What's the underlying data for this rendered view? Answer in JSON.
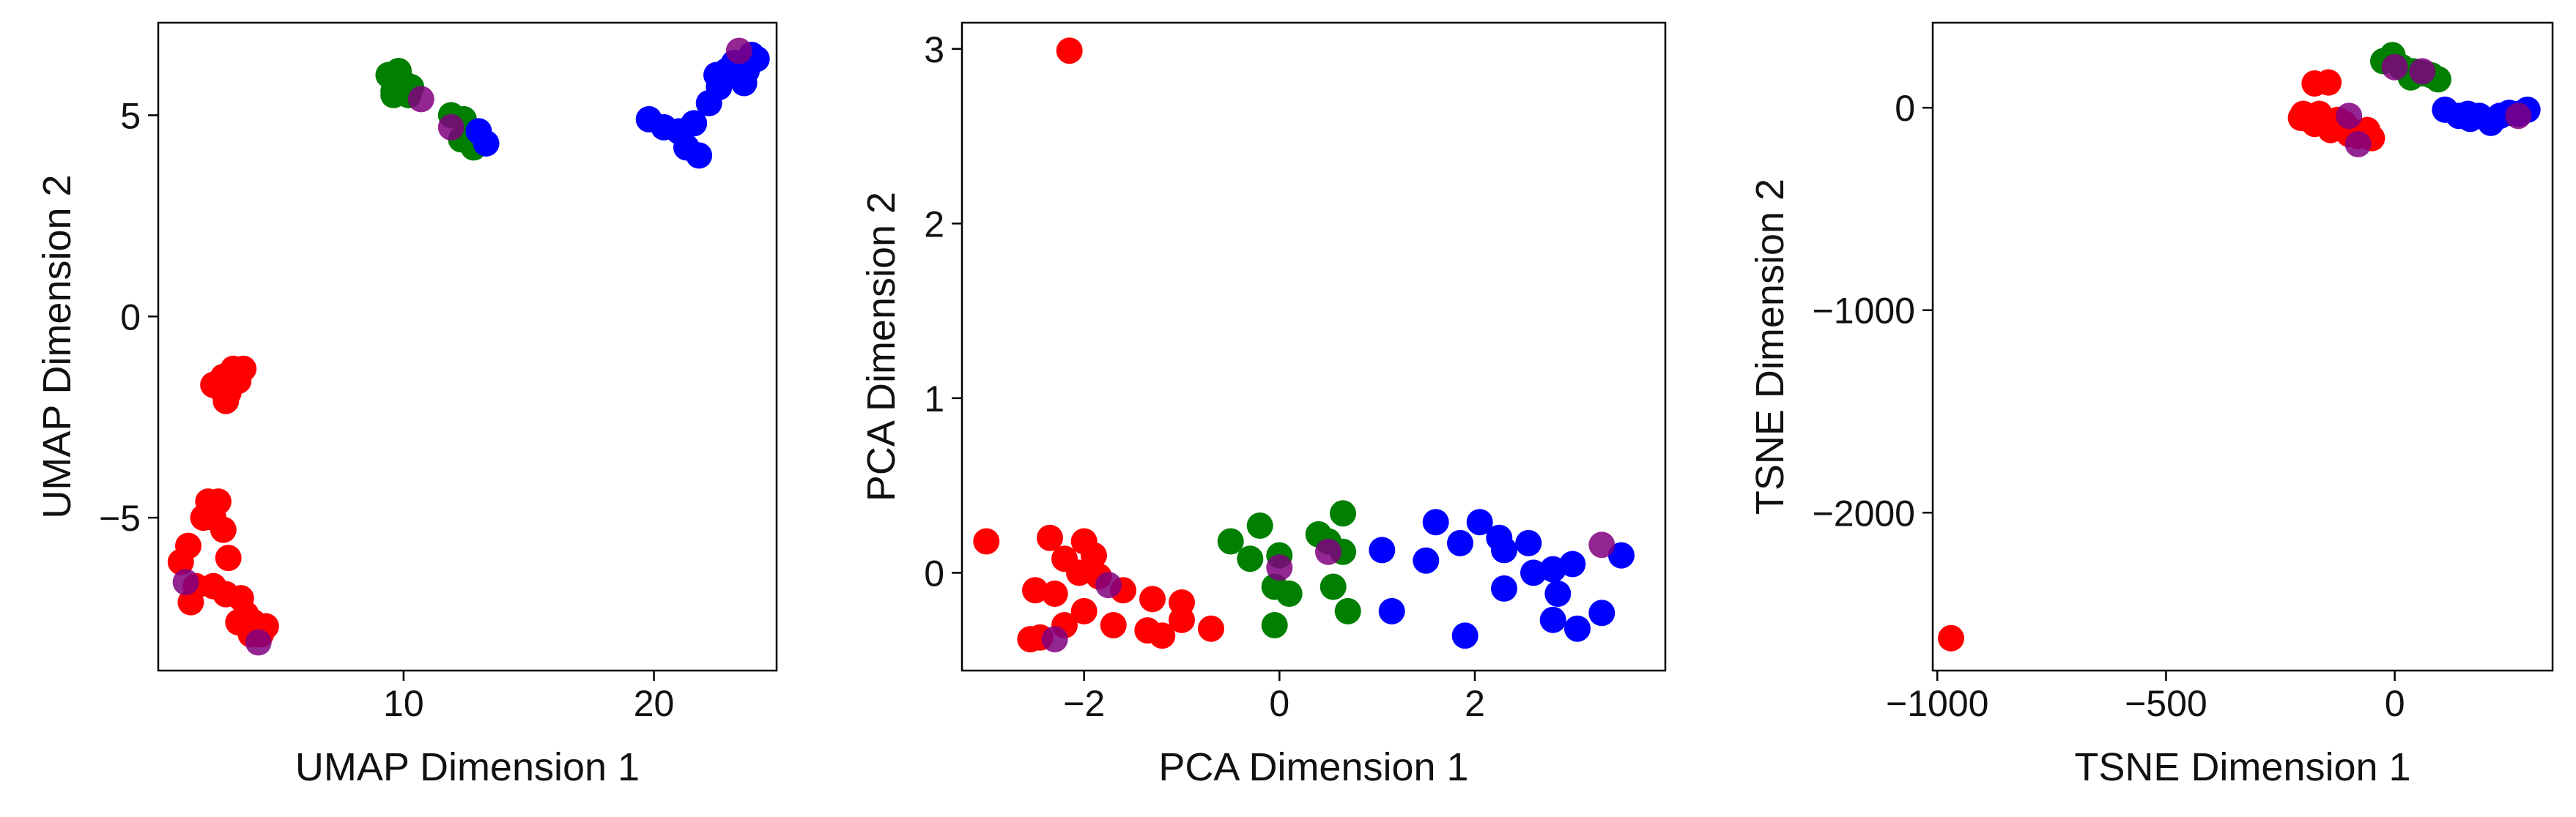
{
  "colors": {
    "red": "#ff0000",
    "green": "#007f00",
    "blue": "#0000ff",
    "purple": "#800080"
  },
  "chart_data": [
    {
      "type": "scatter",
      "title": "",
      "xlabel": "UMAP Dimension 1",
      "ylabel": "UMAP Dimension 2",
      "xlim": [
        0.2,
        24.9
      ],
      "ylim": [
        -8.8,
        7.3
      ],
      "xticks": [
        10,
        20
      ],
      "yticks": [
        -5,
        0,
        5
      ],
      "xtick_labels": [
        "10",
        "20"
      ],
      "ytick_labels": [
        "−5",
        "0",
        "5"
      ],
      "grid": false,
      "legend": null,
      "series": [
        {
          "color": "red",
          "points": [
            [
              2.8,
              -1.5
            ],
            [
              3.2,
              -1.3
            ],
            [
              2.4,
              -1.7
            ],
            [
              3.0,
              -1.9
            ],
            [
              3.4,
              -1.6
            ],
            [
              2.7,
              -1.8
            ],
            [
              2.9,
              -2.1
            ],
            [
              3.6,
              -1.3
            ],
            [
              2.2,
              -4.6
            ],
            [
              2.6,
              -4.6
            ],
            [
              2.0,
              -5.0
            ],
            [
              2.4,
              -5.0
            ],
            [
              2.8,
              -5.3
            ],
            [
              1.4,
              -5.7
            ],
            [
              3.0,
              -6.0
            ],
            [
              1.1,
              -6.1
            ],
            [
              1.7,
              -6.7
            ],
            [
              2.4,
              -6.7
            ],
            [
              2.9,
              -6.9
            ],
            [
              3.5,
              -7.0
            ],
            [
              1.5,
              -7.1
            ],
            [
              3.7,
              -7.4
            ],
            [
              4.0,
              -7.6
            ],
            [
              3.9,
              -7.9
            ],
            [
              3.4,
              -7.6
            ],
            [
              4.5,
              -7.7
            ],
            [
              4.3,
              -7.9
            ]
          ]
        },
        {
          "color": "green",
          "points": [
            [
              9.4,
              6.0
            ],
            [
              9.8,
              6.1
            ],
            [
              10.0,
              5.8
            ],
            [
              9.6,
              5.6
            ],
            [
              10.3,
              5.7
            ],
            [
              9.6,
              5.5
            ],
            [
              10.2,
              5.5
            ],
            [
              11.9,
              5.0
            ],
            [
              12.4,
              4.9
            ],
            [
              12.7,
              4.6
            ],
            [
              12.3,
              4.4
            ],
            [
              12.8,
              4.2
            ],
            [
              12.6,
              4.5
            ]
          ]
        },
        {
          "color": "blue",
          "points": [
            [
              13.3,
              4.3
            ],
            [
              13.0,
              4.6
            ],
            [
              19.8,
              4.9
            ],
            [
              20.4,
              4.7
            ],
            [
              21.0,
              4.6
            ],
            [
              21.6,
              4.8
            ],
            [
              21.3,
              4.2
            ],
            [
              21.8,
              4.0
            ],
            [
              22.2,
              5.3
            ],
            [
              22.6,
              5.7
            ],
            [
              22.9,
              6.1
            ],
            [
              23.2,
              6.3
            ],
            [
              23.7,
              6.1
            ],
            [
              24.1,
              6.4
            ],
            [
              23.6,
              5.8
            ],
            [
              22.5,
              6.0
            ],
            [
              23.9,
              6.5
            ]
          ]
        },
        {
          "color": "purple",
          "points": [
            [
              23.4,
              6.6
            ],
            [
              10.7,
              5.4
            ],
            [
              11.9,
              4.7
            ],
            [
              1.3,
              -6.6
            ],
            [
              4.2,
              -8.1
            ]
          ]
        }
      ]
    },
    {
      "type": "scatter",
      "title": "",
      "xlabel": "PCA Dimension 1",
      "ylabel": "PCA Dimension 2",
      "xlim": [
        -3.25,
        3.95
      ],
      "ylim": [
        -0.56,
        3.15
      ],
      "xticks": [
        -2,
        0,
        2
      ],
      "yticks": [
        0,
        1,
        2,
        3
      ],
      "xtick_labels": [
        "−2",
        "0",
        "2"
      ],
      "ytick_labels": [
        "0",
        "1",
        "2",
        "3"
      ],
      "grid": false,
      "legend": null,
      "series": [
        {
          "color": "red",
          "points": [
            [
              -2.15,
              2.99
            ],
            [
              -3.0,
              0.18
            ],
            [
              -2.35,
              0.2
            ],
            [
              -2.0,
              0.18
            ],
            [
              -2.2,
              0.08
            ],
            [
              -1.9,
              0.1
            ],
            [
              -2.5,
              -0.1
            ],
            [
              -2.3,
              -0.12
            ],
            [
              -1.85,
              -0.02
            ],
            [
              -2.05,
              0.0
            ],
            [
              -1.6,
              -0.1
            ],
            [
              -1.3,
              -0.15
            ],
            [
              -1.0,
              -0.17
            ],
            [
              -2.0,
              -0.22
            ],
            [
              -1.7,
              -0.3
            ],
            [
              -1.35,
              -0.33
            ],
            [
              -1.2,
              -0.36
            ],
            [
              -1.0,
              -0.27
            ],
            [
              -0.7,
              -0.32
            ],
            [
              -2.55,
              -0.38
            ],
            [
              -2.45,
              -0.37
            ],
            [
              -2.2,
              -0.3
            ]
          ]
        },
        {
          "color": "green",
          "points": [
            [
              -0.5,
              0.18
            ],
            [
              -0.2,
              0.27
            ],
            [
              -0.3,
              0.08
            ],
            [
              0.4,
              0.22
            ],
            [
              0.65,
              0.34
            ],
            [
              0.5,
              0.18
            ],
            [
              0.0,
              0.1
            ],
            [
              0.65,
              0.12
            ],
            [
              -0.05,
              -0.08
            ],
            [
              0.1,
              -0.12
            ],
            [
              0.55,
              -0.08
            ],
            [
              0.7,
              -0.22
            ],
            [
              -0.05,
              -0.3
            ]
          ]
        },
        {
          "color": "blue",
          "points": [
            [
              1.05,
              0.13
            ],
            [
              1.6,
              0.29
            ],
            [
              2.05,
              0.29
            ],
            [
              2.25,
              0.2
            ],
            [
              2.55,
              0.17
            ],
            [
              1.85,
              0.17
            ],
            [
              1.5,
              0.07
            ],
            [
              2.3,
              0.13
            ],
            [
              3.0,
              0.05
            ],
            [
              3.5,
              0.1
            ],
            [
              2.6,
              0.0
            ],
            [
              2.8,
              0.02
            ],
            [
              2.3,
              -0.09
            ],
            [
              2.85,
              -0.12
            ],
            [
              3.3,
              -0.23
            ],
            [
              2.8,
              -0.27
            ],
            [
              3.05,
              -0.32
            ],
            [
              1.9,
              -0.36
            ],
            [
              1.15,
              -0.22
            ]
          ]
        },
        {
          "color": "purple",
          "points": [
            [
              3.3,
              0.16
            ],
            [
              0.5,
              0.12
            ],
            [
              0.0,
              0.03
            ],
            [
              -1.75,
              -0.07
            ],
            [
              -2.3,
              -0.38
            ]
          ]
        }
      ]
    },
    {
      "type": "scatter",
      "title": "",
      "xlabel": "TSNE Dimension 1",
      "ylabel": "TSNE Dimension 2",
      "xlim": [
        -1010,
        345
      ],
      "ylim": [
        -2780,
        420
      ],
      "xticks": [
        -1000,
        -500,
        0
      ],
      "yticks": [
        -2000,
        -1000,
        0
      ],
      "xtick_labels": [
        "−1000",
        "−500",
        "0"
      ],
      "ytick_labels": [
        "−2000",
        "−1000",
        "0"
      ],
      "grid": false,
      "legend": null,
      "series": [
        {
          "color": "red",
          "points": [
            [
              -970,
              -2620
            ],
            [
              -205,
              -50
            ],
            [
              -190,
              -55
            ],
            [
              -175,
              -80
            ],
            [
              -165,
              -30
            ],
            [
              -150,
              -70
            ],
            [
              -140,
              -110
            ],
            [
              -125,
              -60
            ],
            [
              -110,
              -80
            ],
            [
              -100,
              -130
            ],
            [
              -90,
              -120
            ],
            [
              -80,
              -140
            ],
            [
              -60,
              -110
            ],
            [
              -50,
              -150
            ],
            [
              -175,
              120
            ],
            [
              -145,
              125
            ],
            [
              -200,
              -30
            ]
          ]
        },
        {
          "color": "green",
          "points": [
            [
              -25,
              230
            ],
            [
              -5,
              260
            ],
            [
              15,
              200
            ],
            [
              40,
              180
            ],
            [
              60,
              170
            ],
            [
              80,
              160
            ],
            [
              95,
              140
            ],
            [
              35,
              150
            ]
          ]
        },
        {
          "color": "blue",
          "points": [
            [
              110,
              -10
            ],
            [
              140,
              -40
            ],
            [
              165,
              -55
            ],
            [
              185,
              -40
            ],
            [
              210,
              -75
            ],
            [
              230,
              -40
            ],
            [
              250,
              -25
            ],
            [
              270,
              -30
            ],
            [
              290,
              -10
            ],
            [
              160,
              -30
            ]
          ]
        },
        {
          "color": "purple",
          "points": [
            [
              270,
              -40
            ],
            [
              60,
              180
            ],
            [
              0,
              200
            ],
            [
              -100,
              -40
            ],
            [
              -80,
              -180
            ]
          ]
        }
      ]
    }
  ]
}
